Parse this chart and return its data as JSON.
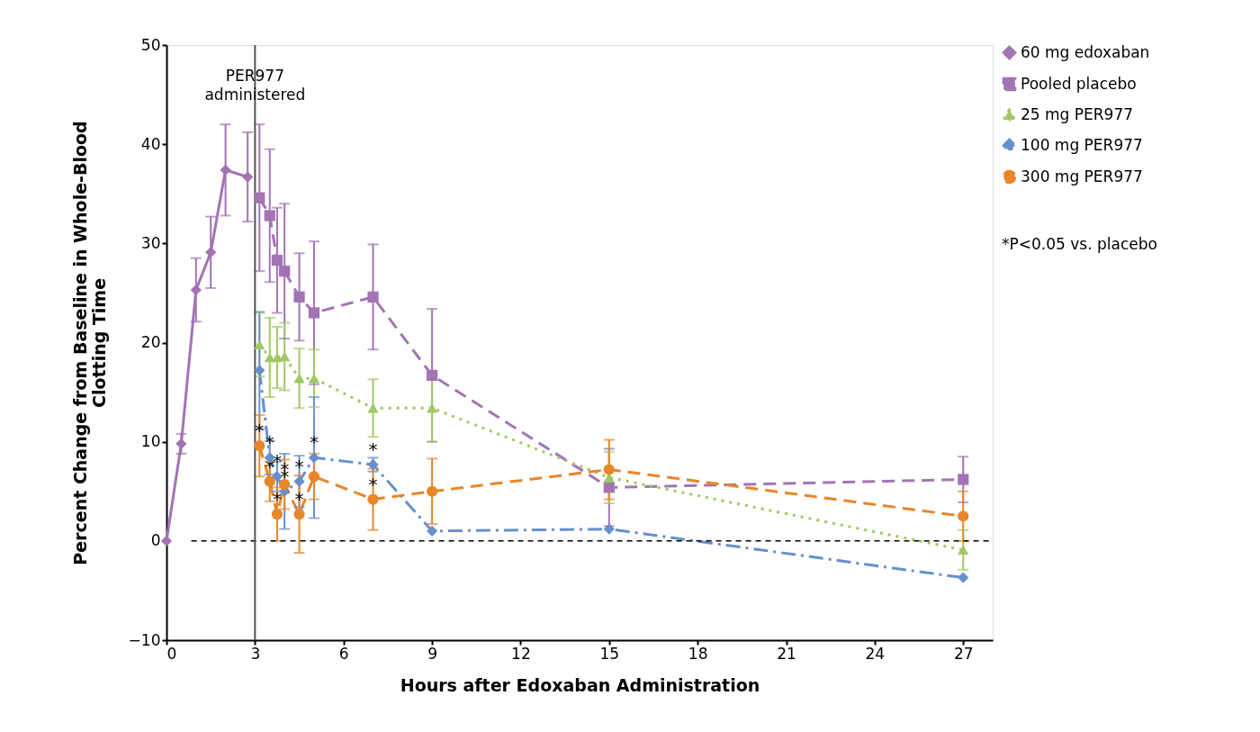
{
  "chart_data": {
    "type": "line",
    "xlabel": "Hours after Edoxaban Administration",
    "ylabel": "Percent Change from Baseline in Whole-Blood\nClotting Time",
    "xlim": [
      0,
      28
    ],
    "xticks": [
      0,
      3,
      6,
      9,
      12,
      15,
      18,
      21,
      24,
      27
    ],
    "ylim": [
      -10,
      50
    ],
    "yticks": [
      {
        "value": -10,
        "label": "−10"
      },
      0,
      10,
      20,
      30,
      40,
      50
    ],
    "grid": false,
    "legend": "top right",
    "series": [
      {
        "name": "60 mg edoxaban",
        "color": "#a374b4",
        "marker": "diamond",
        "line_style": "solid",
        "x": [
          0,
          0.5,
          1,
          1.5,
          2,
          2.75
        ],
        "values": [
          0,
          9.8,
          25.3,
          29.1,
          37.4,
          36.7
        ],
        "errors": [
          null,
          1.0,
          3.2,
          3.6,
          4.6,
          4.5
        ]
      },
      {
        "name": "Pooled placebo",
        "color": "#a374b4",
        "marker": "square",
        "line_style": "dashed",
        "x": [
          3.15,
          3.5,
          3.75,
          4,
          4.5,
          5,
          7,
          9,
          15,
          27
        ],
        "values": [
          34.6,
          32.8,
          28.3,
          27.2,
          24.6,
          23.0,
          24.6,
          16.7,
          5.4,
          6.2
        ],
        "errors": [
          7.4,
          6.7,
          5.3,
          6.8,
          4.4,
          7.2,
          5.3,
          6.7,
          3.9,
          2.3
        ]
      },
      {
        "name": "25 mg PER977",
        "color": "#a2c865",
        "marker": "triangle",
        "line_style": "dotted",
        "x": [
          3.15,
          3.5,
          3.75,
          4,
          4.5,
          5,
          7,
          9,
          15,
          27
        ],
        "values": [
          19.8,
          18.5,
          18.5,
          18.6,
          16.4,
          16.4,
          13.4,
          13.4,
          6.4,
          -0.9
        ],
        "errors": [
          3.2,
          4.0,
          3.1,
          3.4,
          3.0,
          2.9,
          2.9,
          3.4,
          2.6,
          2.0
        ]
      },
      {
        "name": "100 mg PER977",
        "color": "#6690cc",
        "marker": "diamond",
        "line_style": "dashdot",
        "x": [
          3.15,
          3.5,
          3.75,
          4,
          4.5,
          5,
          7,
          9,
          15,
          27
        ],
        "values": [
          17.2,
          8.4,
          6.5,
          5.0,
          6.0,
          8.4,
          7.7,
          1.0,
          1.2,
          -3.7
        ],
        "errors": [
          5.9,
          1.7,
          1.5,
          3.8,
          2.6,
          6.1,
          0.7,
          null,
          null,
          null
        ]
      },
      {
        "name": "300 mg PER977",
        "color": "#e8862a",
        "marker": "circle",
        "line_style": "dashed",
        "x": [
          3.15,
          3.5,
          3.75,
          4,
          4.5,
          5,
          7,
          9,
          15,
          27
        ],
        "values": [
          9.6,
          6.0,
          2.7,
          5.7,
          2.7,
          6.5,
          4.2,
          5.0,
          7.2,
          2.5
        ],
        "errors": [
          3.1,
          2.0,
          2.7,
          2.5,
          3.9,
          2.3,
          3.1,
          3.3,
          3.0,
          2.5
        ]
      }
    ],
    "ref_lines": [
      {
        "axis": "y",
        "value": 0,
        "color": "#000000",
        "line_style": "dashed"
      },
      {
        "axis": "x",
        "value": 3,
        "color": "#555555",
        "line_style": "solid",
        "label": "PER977\nadministered"
      }
    ],
    "annotations": [
      {
        "text": "*",
        "x": 3.15,
        "y": 9.6
      },
      {
        "text": "*",
        "x": 3.5,
        "y": 8.4
      },
      {
        "text": "*",
        "x": 3.5,
        "y": 6.0
      },
      {
        "text": "*",
        "x": 3.75,
        "y": 6.5
      },
      {
        "text": "*",
        "x": 3.75,
        "y": 2.7
      },
      {
        "text": "*",
        "x": 4,
        "y": 5.7
      },
      {
        "text": "*",
        "x": 4,
        "y": 5.0
      },
      {
        "text": "*",
        "x": 4.5,
        "y": 6.0
      },
      {
        "text": "*",
        "x": 4.5,
        "y": 2.7
      },
      {
        "text": "*",
        "x": 5,
        "y": 8.4
      },
      {
        "text": "*",
        "x": 7,
        "y": 7.7
      },
      {
        "text": "*",
        "x": 7,
        "y": 4.2
      },
      "*P<0.05 vs. placebo"
    ]
  }
}
